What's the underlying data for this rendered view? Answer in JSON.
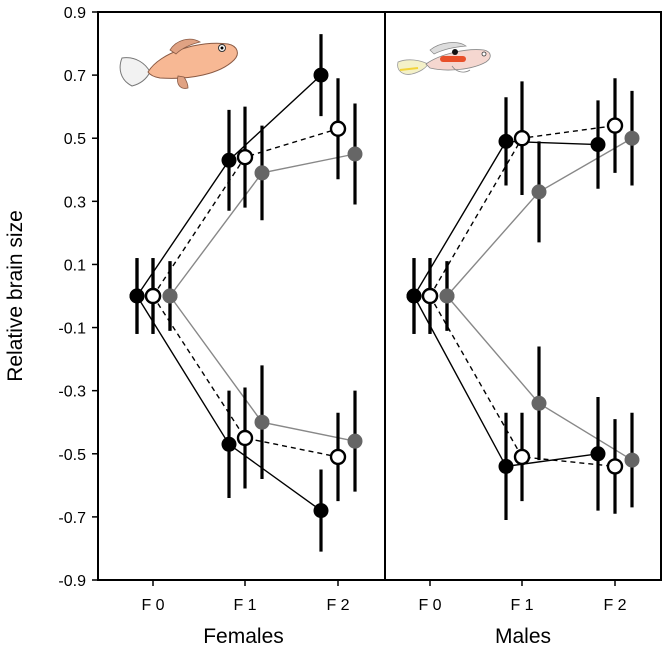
{
  "chart_data": {
    "type": "scatter",
    "ylabel": "Relative brain size",
    "ylim": [
      -0.9,
      0.9
    ],
    "yticks": [
      "0.9",
      "0.7",
      "0.5",
      "0.3",
      "0.1",
      "-0.1",
      "-0.3",
      "-0.5",
      "-0.7",
      "-0.9"
    ],
    "ytick_values": [
      0.9,
      0.7,
      0.5,
      0.3,
      0.1,
      -0.1,
      -0.3,
      -0.5,
      -0.7,
      -0.9
    ],
    "categories": [
      "F 0",
      "F 1",
      "F 2"
    ],
    "panels": [
      {
        "name": "Females",
        "series": [
          {
            "style": "filled-black",
            "line": "solid",
            "line_color": "#000000",
            "group": "up",
            "values": [
              0.0,
              0.43,
              0.7
            ],
            "err": [
              0.12,
              0.16,
              0.13
            ]
          },
          {
            "style": "open",
            "line": "dashed",
            "line_color": "#000000",
            "group": "up",
            "values": [
              0.0,
              0.44,
              0.53
            ],
            "err": [
              0.12,
              0.16,
              0.16
            ]
          },
          {
            "style": "filled-gray",
            "line": "solid",
            "line_color": "#888888",
            "group": "up",
            "values": [
              0.0,
              0.39,
              0.45
            ],
            "err": [
              0.11,
              0.15,
              0.16
            ]
          },
          {
            "style": "filled-black",
            "line": "solid",
            "line_color": "#000000",
            "group": "down",
            "values": [
              0.0,
              -0.47,
              -0.68
            ],
            "err": [
              0.12,
              0.17,
              0.13
            ]
          },
          {
            "style": "open",
            "line": "dashed",
            "line_color": "#000000",
            "group": "down",
            "values": [
              0.0,
              -0.45,
              -0.51
            ],
            "err": [
              0.12,
              0.16,
              0.14
            ]
          },
          {
            "style": "filled-gray",
            "line": "solid",
            "line_color": "#888888",
            "group": "down",
            "values": [
              0.0,
              -0.4,
              -0.46
            ],
            "err": [
              0.11,
              0.18,
              0.16
            ]
          }
        ]
      },
      {
        "name": "Males",
        "series": [
          {
            "style": "filled-black",
            "line": "solid",
            "line_color": "#000000",
            "group": "up",
            "values": [
              0.0,
              0.49,
              0.48
            ],
            "err": [
              0.12,
              0.14,
              0.14
            ]
          },
          {
            "style": "open",
            "line": "dashed",
            "line_color": "#000000",
            "group": "up",
            "values": [
              0.0,
              0.5,
              0.54
            ],
            "err": [
              0.12,
              0.18,
              0.15
            ]
          },
          {
            "style": "filled-gray",
            "line": "solid",
            "line_color": "#888888",
            "group": "up",
            "values": [
              0.0,
              0.33,
              0.5
            ],
            "err": [
              0.11,
              0.16,
              0.15
            ]
          },
          {
            "style": "filled-black",
            "line": "solid",
            "line_color": "#000000",
            "group": "down",
            "values": [
              0.0,
              -0.54,
              -0.5
            ],
            "err": [
              0.12,
              0.17,
              0.18
            ]
          },
          {
            "style": "open",
            "line": "dashed",
            "line_color": "#000000",
            "group": "down",
            "values": [
              0.0,
              -0.51,
              -0.54
            ],
            "err": [
              0.12,
              0.14,
              0.15
            ]
          },
          {
            "style": "filled-gray",
            "line": "solid",
            "line_color": "#888888",
            "group": "down",
            "values": [
              0.0,
              -0.34,
              -0.52
            ],
            "err": [
              0.11,
              0.18,
              0.15
            ]
          }
        ]
      }
    ],
    "colors": {
      "black": "#000000",
      "gray": "#666666",
      "line_gray": "#888888",
      "female_fish": "#f7b894",
      "male_fish_accent": "#e8502a"
    },
    "icons": [
      "female-guppy-illustration",
      "male-guppy-illustration"
    ]
  }
}
